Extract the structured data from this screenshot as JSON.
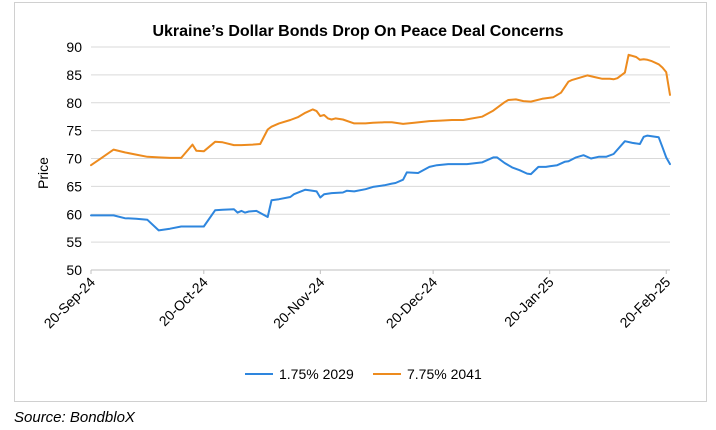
{
  "chart_data": {
    "type": "line",
    "title": "Ukraine’s Dollar Bonds Drop On Peace Deal Concerns",
    "xlabel": "",
    "ylabel": "Price",
    "ylim": [
      50,
      90
    ],
    "yticks": [
      50,
      55,
      60,
      65,
      70,
      75,
      80,
      85,
      90
    ],
    "x_range_days": [
      0,
      154
    ],
    "x_ticks": [
      {
        "label": "20-Sep-24",
        "day": 0
      },
      {
        "label": "20-Oct-24",
        "day": 30
      },
      {
        "label": "20-Nov-24",
        "day": 61
      },
      {
        "label": "20-Dec-24",
        "day": 91
      },
      {
        "label": "20-Jan-25",
        "day": 122
      },
      {
        "label": "20-Feb-25",
        "day": 153
      }
    ],
    "grid": true,
    "legend_position": "bottom",
    "series": [
      {
        "name": "1.75% 2029",
        "color": "#2e86de",
        "x": [
          0,
          3,
          6,
          9,
          12,
          15,
          18,
          21,
          24,
          27,
          28,
          30,
          33,
          35,
          38,
          39,
          40,
          41,
          42,
          44,
          47,
          48,
          50,
          53,
          54,
          57,
          58,
          60,
          61,
          62,
          64,
          67,
          68,
          70,
          73,
          75,
          76,
          78,
          80,
          81,
          83,
          84,
          87,
          90,
          92,
          95,
          100,
          104,
          107,
          108,
          110,
          112,
          114,
          116,
          117,
          119,
          121,
          122,
          124,
          126,
          127,
          129,
          131,
          133,
          135,
          137,
          139,
          142,
          144,
          146,
          147,
          148,
          151,
          152,
          153,
          154
        ],
        "values": [
          59.8,
          59.8,
          59.8,
          59.3,
          59.2,
          59.0,
          57.1,
          57.4,
          57.8,
          57.8,
          57.8,
          57.8,
          60.7,
          60.8,
          60.9,
          60.3,
          60.6,
          60.3,
          60.5,
          60.6,
          59.5,
          62.5,
          62.7,
          63.1,
          63.6,
          64.4,
          64.3,
          64.1,
          63.0,
          63.6,
          63.8,
          63.9,
          64.2,
          64.1,
          64.5,
          64.9,
          65.0,
          65.2,
          65.5,
          65.6,
          66.2,
          67.5,
          67.4,
          68.5,
          68.8,
          69.0,
          69.0,
          69.3,
          70.2,
          70.2,
          69.2,
          68.4,
          67.9,
          67.3,
          67.2,
          68.5,
          68.5,
          68.6,
          68.8,
          69.4,
          69.5,
          70.2,
          70.6,
          70.0,
          70.3,
          70.3,
          70.8,
          73.1,
          72.8,
          72.6,
          73.9,
          74.1,
          73.8,
          72.0,
          70.2,
          69.0
        ]
      },
      {
        "name": "7.75% 2041",
        "color": "#ed8b1e",
        "x": [
          0,
          3,
          6,
          9,
          12,
          15,
          18,
          21,
          24,
          27,
          28,
          30,
          33,
          35,
          38,
          40,
          43,
          45,
          47,
          48,
          50,
          53,
          55,
          57,
          59,
          60,
          61,
          62,
          63,
          64,
          65,
          67,
          70,
          73,
          75,
          78,
          80,
          83,
          86,
          90,
          93,
          96,
          99,
          104,
          107,
          110,
          111,
          113,
          115,
          117,
          120,
          123,
          125,
          127,
          128,
          130,
          132,
          134,
          136,
          138,
          139,
          140,
          142,
          143,
          145,
          146,
          147,
          148,
          149,
          151,
          152,
          153,
          154
        ],
        "values": [
          68.8,
          70.2,
          71.6,
          71.1,
          70.7,
          70.3,
          70.2,
          70.1,
          70.1,
          72.5,
          71.4,
          71.3,
          73.0,
          72.9,
          72.4,
          72.4,
          72.5,
          72.6,
          75.2,
          75.7,
          76.3,
          76.9,
          77.4,
          78.2,
          78.8,
          78.5,
          77.6,
          77.8,
          77.2,
          77.0,
          77.2,
          77.0,
          76.3,
          76.3,
          76.4,
          76.5,
          76.5,
          76.2,
          76.4,
          76.7,
          76.8,
          76.9,
          76.9,
          77.5,
          78.6,
          80.1,
          80.5,
          80.6,
          80.3,
          80.2,
          80.7,
          81.0,
          81.8,
          83.8,
          84.1,
          84.5,
          84.9,
          84.6,
          84.3,
          84.3,
          84.2,
          84.4,
          85.4,
          88.6,
          88.2,
          87.7,
          87.8,
          87.7,
          87.5,
          86.9,
          86.3,
          85.5,
          81.4
        ]
      }
    ]
  },
  "source": "Source: BondbloX"
}
